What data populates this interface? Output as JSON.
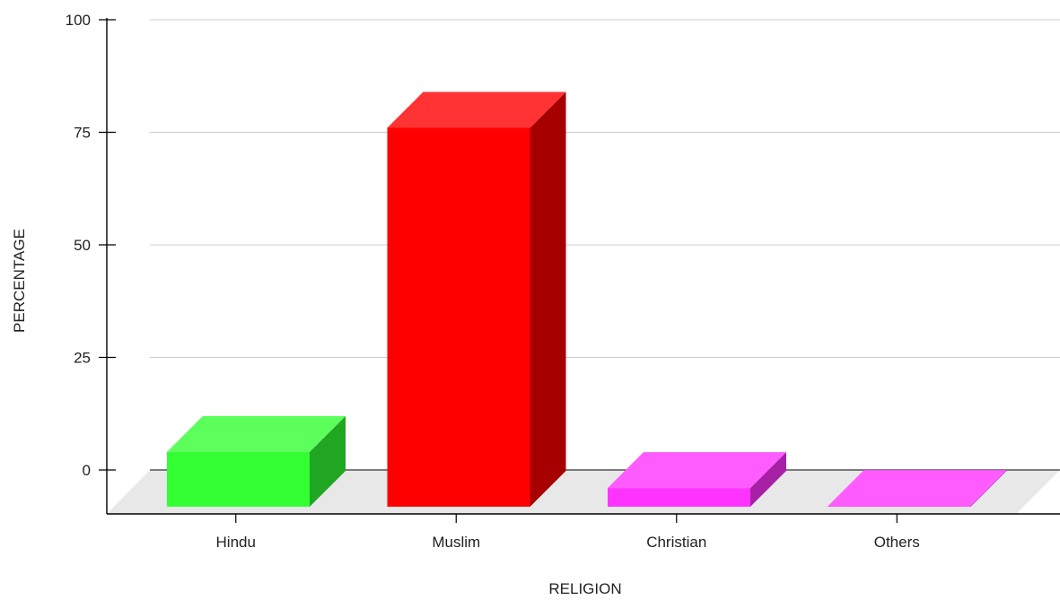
{
  "chart_data": {
    "type": "bar",
    "style": "3d",
    "title": "",
    "xlabel": "RELIGION",
    "ylabel": "PERCENTAGE",
    "categories": [
      "Hindu",
      "Muslim",
      "Christian",
      "Others"
    ],
    "values": [
      4,
      76,
      -4,
      -8
    ],
    "colors": [
      "#33ff33",
      "#ff0000",
      "#ff33ff",
      "#ff33ff"
    ],
    "ylim": [
      0,
      100
    ],
    "yticks": [
      0,
      25,
      50,
      75,
      100
    ],
    "grid": true,
    "legend": "none"
  }
}
